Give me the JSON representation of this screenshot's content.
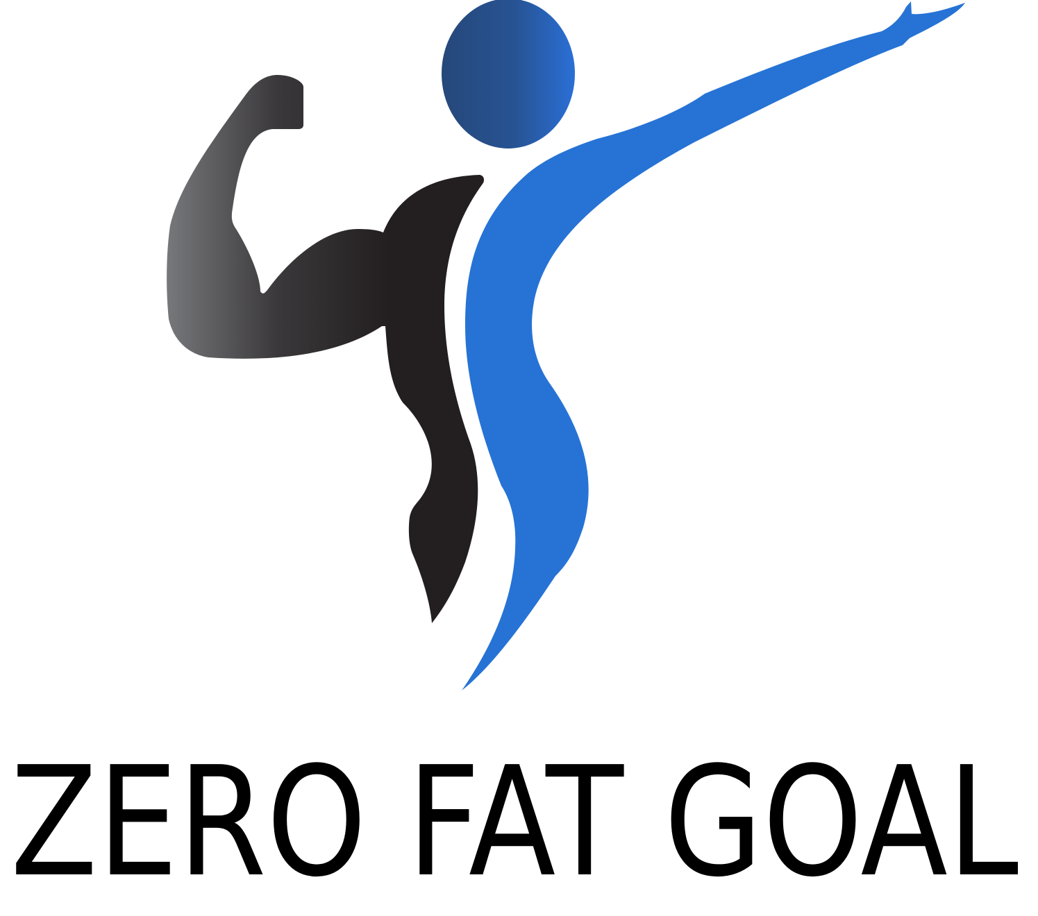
{
  "logo": {
    "brand_name": "ZERO FAT GOAL"
  }
}
